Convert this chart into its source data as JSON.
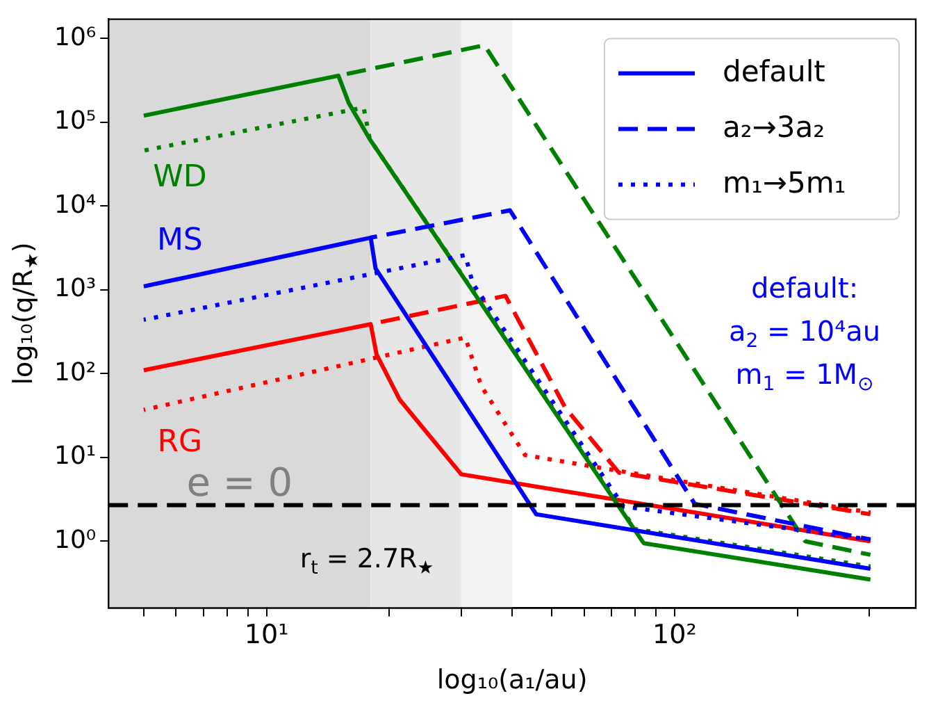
{
  "chart_data": {
    "type": "line",
    "xlabel": "log₁₀(a₁/au)",
    "ylabel": "log₁₀(q/R$_{★}$)",
    "log": "xy",
    "legend": "top right",
    "xlim": [
      4.1,
      390
    ],
    "ylim": [
      0.16,
      1700000
    ],
    "xticks": [
      {
        "value": 5,
        "label": null
      },
      {
        "value": 6,
        "label": null
      },
      {
        "value": 7,
        "label": null
      },
      {
        "value": 8,
        "label": null
      },
      {
        "value": 9,
        "label": null
      },
      {
        "value": 10,
        "label": "10¹"
      },
      {
        "value": 20,
        "label": null
      },
      {
        "value": 30,
        "label": null
      },
      {
        "value": 40,
        "label": null
      },
      {
        "value": 50,
        "label": null
      },
      {
        "value": 60,
        "label": null
      },
      {
        "value": 70,
        "label": null
      },
      {
        "value": 80,
        "label": null
      },
      {
        "value": 90,
        "label": null
      },
      {
        "value": 100,
        "label": "10²"
      },
      {
        "value": 200,
        "label": null
      },
      {
        "value": 300,
        "label": null
      }
    ],
    "yticks": [
      {
        "value": 1,
        "label": "10⁰"
      },
      {
        "value": 10,
        "label": "10¹"
      },
      {
        "value": 100,
        "label": "10²"
      },
      {
        "value": 1000,
        "label": "10³"
      },
      {
        "value": 10000,
        "label": "10⁴"
      },
      {
        "value": 100000,
        "label": "10⁵"
      },
      {
        "value": 1000000,
        "label": "10⁶"
      }
    ],
    "series": [
      {
        "name": "default",
        "color": "#0000ff",
        "line_style": "solid",
        "x": [
          5,
          18,
          18.5,
          45.8,
          302
        ],
        "values": [
          1100,
          4200,
          1800,
          2.1,
          0.47
        ]
      },
      {
        "name": "a₂→3a₂",
        "color": "#0000ff",
        "line_style": "dashed",
        "x": [
          18,
          39.5,
          112,
          302
        ],
        "values": [
          4200,
          8900,
          2.8,
          1.05
        ]
      },
      {
        "name": "m₁→5m₁",
        "color": "#0000ff",
        "line_style": "dotted",
        "x": [
          5,
          30.7,
          32,
          75,
          302
        ],
        "values": [
          440,
          2600,
          1200,
          2.6,
          1.05
        ]
      },
      {
        "color": "#008000",
        "line_style": "solid",
        "x": [
          5,
          15,
          15.9,
          17.9,
          84,
          302
        ],
        "values": [
          120000,
          360000,
          170000,
          63000,
          0.95,
          0.35
        ]
      },
      {
        "color": "#008000",
        "line_style": "dashed",
        "x": [
          15,
          34.2,
          209,
          302
        ],
        "values": [
          360000,
          830000,
          1.0,
          0.69
        ]
      },
      {
        "color": "#008000",
        "line_style": "dotted",
        "x": [
          5,
          17.3,
          17.9,
          80,
          302
        ],
        "values": [
          46000,
          150000,
          63000,
          1.4,
          0.5
        ]
      },
      {
        "color": "#ff0000",
        "line_style": "solid",
        "x": [
          5,
          18,
          18.6,
          21.2,
          30,
          302
        ],
        "values": [
          110,
          390,
          170,
          49,
          6.3,
          1.0
        ]
      },
      {
        "color": "#ff0000",
        "line_style": "dashed",
        "x": [
          18,
          38.5,
          54,
          73,
          302
        ],
        "values": [
          390,
          850,
          39,
          6.6,
          2.1
        ]
      },
      {
        "color": "#ff0000",
        "line_style": "dotted",
        "x": [
          5,
          30.7,
          33.6,
          43,
          64,
          302
        ],
        "values": [
          37,
          270,
          71,
          10.7,
          7.7,
          2.2
        ]
      }
    ],
    "bands": [
      {
        "axis": "x",
        "from": 4.1,
        "to": 18,
        "label": "e = 0",
        "color": "#d9d9d9"
      },
      {
        "axis": "x",
        "from": 18,
        "to": 30,
        "color": "#e6e6e6"
      },
      {
        "axis": "x",
        "from": 30,
        "to": 40,
        "color": "#f2f2f2"
      }
    ],
    "ref_lines": [
      {
        "axis": "y",
        "value": 2.7,
        "label": "r$_{t}$ = 2.7R$_{★}$",
        "color": "#000000",
        "line_style": "dashed"
      }
    ],
    "annotations": [
      "WD",
      "MS",
      "RG",
      "default:\na$_{2}$ = 10⁴au\nm$_{1}$ = 1M$_{⊙}$"
    ]
  }
}
